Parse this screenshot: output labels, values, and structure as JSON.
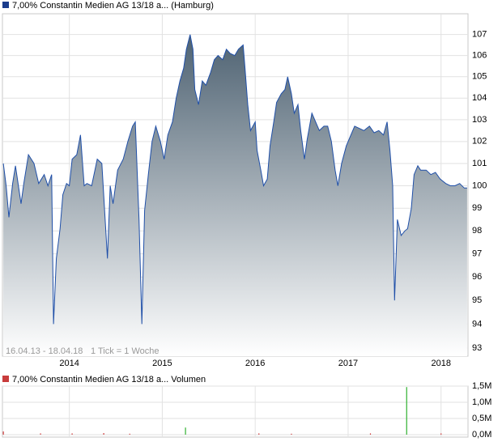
{
  "chart_data": [
    {
      "type": "area",
      "log_scale": true,
      "grid": true,
      "annotations": [
        "16.04.13 - 18.04.18",
        "1 Tick = 1 Woche"
      ],
      "xlim": [
        2013.28,
        2018.29
      ],
      "xticks": [
        2014,
        2015,
        2016,
        2017,
        2018
      ],
      "ylim": [
        92.66,
        108
      ],
      "yticks": [
        93,
        94,
        95,
        96,
        97,
        98,
        99,
        100,
        101,
        102,
        103,
        104,
        105,
        106,
        107
      ],
      "series": [
        {
          "name": "7,00% Constantin Medien AG 13/18 a... (Hamburg)",
          "color": "#1f4fa8",
          "legend_color": "#1a3c8c",
          "fill_top": "#4e6272",
          "x": [
            2013.29,
            2013.32,
            2013.35,
            2013.39,
            2013.42,
            2013.48,
            2013.51,
            2013.56,
            2013.62,
            2013.67,
            2013.73,
            2013.77,
            2013.81,
            2013.83,
            2013.86,
            2013.9,
            2013.93,
            2013.97,
            2014.0,
            2014.03,
            2014.08,
            2014.12,
            2014.16,
            2014.19,
            2014.24,
            2014.3,
            2014.35,
            2014.38,
            2014.41,
            2014.44,
            2014.47,
            2014.52,
            2014.58,
            2014.63,
            2014.68,
            2014.71,
            2014.75,
            2014.78,
            2014.81,
            2014.85,
            2014.89,
            2014.93,
            2014.98,
            2015.02,
            2015.06,
            2015.11,
            2015.15,
            2015.19,
            2015.23,
            2015.26,
            2015.3,
            2015.33,
            2015.35,
            2015.39,
            2015.43,
            2015.47,
            2015.52,
            2015.56,
            2015.6,
            2015.65,
            2015.69,
            2015.73,
            2015.78,
            2015.82,
            2015.87,
            2015.89,
            2015.92,
            2015.95,
            2016.0,
            2016.02,
            2016.06,
            2016.09,
            2016.13,
            2016.16,
            2016.2,
            2016.23,
            2016.28,
            2016.32,
            2016.35,
            2016.39,
            2016.42,
            2016.46,
            2016.49,
            2016.53,
            2016.56,
            2016.61,
            2016.65,
            2016.69,
            2016.74,
            2016.78,
            2016.82,
            2016.86,
            2016.89,
            2016.93,
            2016.98,
            2017.03,
            2017.07,
            2017.12,
            2017.17,
            2017.23,
            2017.28,
            2017.33,
            2017.38,
            2017.42,
            2017.45,
            2017.48,
            2017.5,
            2017.53,
            2017.57,
            2017.61,
            2017.64,
            2017.68,
            2017.71,
            2017.75,
            2017.78,
            2017.84,
            2017.89,
            2017.94,
            2017.99,
            2018.05,
            2018.1,
            2018.15,
            2018.2,
            2018.25,
            2018.28
          ],
          "values": [
            101.0,
            100,
            98.6,
            100.1,
            100.9,
            99.2,
            100.1,
            101.4,
            101.0,
            100.1,
            100.5,
            100,
            100.5,
            94,
            96.8,
            98.1,
            99.6,
            100.1,
            100,
            101.2,
            101.4,
            102.3,
            100,
            100.1,
            100,
            101.2,
            101,
            98.9,
            96.8,
            100,
            99.2,
            100.7,
            101.2,
            102,
            102.7,
            102.9,
            98.5,
            94,
            98.9,
            100.5,
            102,
            102.7,
            102,
            101.2,
            102.3,
            102.9,
            104,
            104.8,
            105.4,
            106.3,
            107,
            106.3,
            104.4,
            103.7,
            104.8,
            104.6,
            105.2,
            105.8,
            106,
            105.8,
            106.3,
            106.1,
            106,
            106.3,
            106.5,
            105.4,
            103.7,
            102.5,
            102.9,
            101.6,
            100.7,
            100,
            100.3,
            101.8,
            102.9,
            103.8,
            104.2,
            104.4,
            105,
            104.2,
            103.3,
            103.7,
            102.5,
            101.2,
            102.1,
            103.3,
            102.9,
            102.5,
            102.7,
            102.7,
            102,
            100.7,
            100,
            101,
            101.8,
            102.3,
            102.7,
            102.6,
            102.5,
            102.7,
            102.4,
            102.5,
            102.3,
            102.9,
            101.6,
            100,
            95,
            98.5,
            97.8,
            98,
            98.1,
            99,
            100.5,
            100.9,
            100.7,
            100.7,
            100.5,
            100.6,
            100.3,
            100.1,
            100,
            100,
            100.1,
            99.9,
            99.9
          ]
        }
      ]
    },
    {
      "type": "bar",
      "grid": true,
      "xlim": [
        2013.28,
        2018.29
      ],
      "ylim": [
        0,
        1500000
      ],
      "yticks": [
        {
          "value": 0,
          "label": "0,0M"
        },
        {
          "value": 500000,
          "label": "0,5M"
        },
        {
          "value": 1000000,
          "label": "1,0M"
        },
        {
          "value": 1500000,
          "label": "1,5M"
        }
      ],
      "series": [
        {
          "name": "7,00% Constantin Medien AG 13/18 a... Volumen",
          "legend_color": "#c83c3c",
          "x": [
            2013.29,
            2013.69,
            2014.03,
            2014.37,
            2014.65,
            2015.25,
            2016.04,
            2016.39,
            2017.24,
            2017.63,
            2018.0
          ],
          "values": [
            100000,
            40000,
            40000,
            50000,
            30000,
            220000,
            40000,
            30000,
            40000,
            1470000,
            40000
          ],
          "colors": [
            "#d04040",
            "#d04040",
            "#d04040",
            "#d04040",
            "#d04040",
            "#30b030",
            "#d04040",
            "#d04040",
            "#d04040",
            "#30b030",
            "#d04040"
          ]
        }
      ]
    }
  ]
}
